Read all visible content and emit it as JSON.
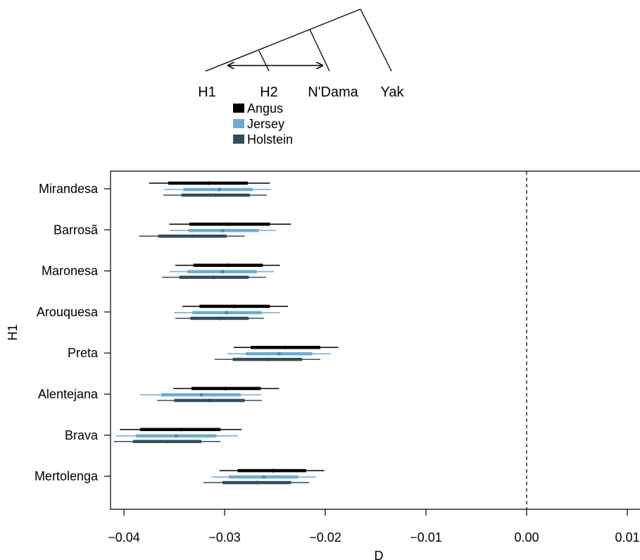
{
  "tree": {
    "tips": [
      "H1",
      "H2",
      "N'Dama",
      "Yak"
    ]
  },
  "legend": [
    {
      "label": "Angus",
      "color": "#000000"
    },
    {
      "label": "Jersey",
      "color": "#6aaed0"
    },
    {
      "label": "Holstein",
      "color": "#334d5f"
    }
  ],
  "chart_data": {
    "type": "interval",
    "xlabel": "D",
    "ylabel": "H1",
    "xlim": [
      -0.042,
      0.011
    ],
    "x_ticks": [
      -0.04,
      -0.03,
      -0.02,
      -0.01,
      0.0,
      0.01
    ],
    "x_tick_labels": [
      "−0.04",
      "−0.03",
      "−0.02",
      "−0.01",
      "0.00",
      "0.01"
    ],
    "reference_line": 0.0,
    "categories": [
      "Mirandesa",
      "Barrosã",
      "Maronesa",
      "Arouquesa",
      "Preta",
      "Alentejana",
      "Brava",
      "Mertolenga"
    ],
    "series": [
      {
        "name": "Angus",
        "values": [
          {
            "center": -0.0316,
            "inner": [
              -0.0356,
              -0.0277
            ],
            "outer": [
              -0.0375,
              -0.0255
            ]
          },
          {
            "center": -0.0296,
            "inner": [
              -0.0335,
              -0.0255
            ],
            "outer": [
              -0.0355,
              -0.0234
            ]
          },
          {
            "center": -0.0297,
            "inner": [
              -0.0331,
              -0.0262
            ],
            "outer": [
              -0.0349,
              -0.0245
            ]
          },
          {
            "center": -0.029,
            "inner": [
              -0.0325,
              -0.0255
            ],
            "outer": [
              -0.0342,
              -0.0237
            ]
          },
          {
            "center": -0.024,
            "inner": [
              -0.0274,
              -0.0205
            ],
            "outer": [
              -0.0291,
              -0.0187
            ]
          },
          {
            "center": -0.0299,
            "inner": [
              -0.0333,
              -0.0264
            ],
            "outer": [
              -0.0351,
              -0.0246
            ]
          },
          {
            "center": -0.0343,
            "inner": [
              -0.0384,
              -0.0304
            ],
            "outer": [
              -0.0404,
              -0.0283
            ]
          },
          {
            "center": -0.0252,
            "inner": [
              -0.0287,
              -0.0219
            ],
            "outer": [
              -0.0305,
              -0.0201
            ]
          }
        ]
      },
      {
        "name": "Jersey",
        "values": [
          {
            "center": -0.0305,
            "inner": [
              -0.0341,
              -0.0272
            ],
            "outer": [
              -0.036,
              -0.0254
            ]
          },
          {
            "center": -0.0302,
            "inner": [
              -0.0336,
              -0.0266
            ],
            "outer": [
              -0.0354,
              -0.0249
            ]
          },
          {
            "center": -0.0302,
            "inner": [
              -0.0337,
              -0.0268
            ],
            "outer": [
              -0.0355,
              -0.0251
            ]
          },
          {
            "center": -0.0298,
            "inner": [
              -0.0332,
              -0.0263
            ],
            "outer": [
              -0.035,
              -0.0245
            ]
          },
          {
            "center": -0.0246,
            "inner": [
              -0.0279,
              -0.0213
            ],
            "outer": [
              -0.0297,
              -0.0195
            ]
          },
          {
            "center": -0.0323,
            "inner": [
              -0.0363,
              -0.0284
            ],
            "outer": [
              -0.0384,
              -0.0264
            ]
          },
          {
            "center": -0.0348,
            "inner": [
              -0.0388,
              -0.0308
            ],
            "outer": [
              -0.0408,
              -0.0287
            ]
          },
          {
            "center": -0.0261,
            "inner": [
              -0.0296,
              -0.0227
            ],
            "outer": [
              -0.0313,
              -0.0209
            ]
          }
        ]
      },
      {
        "name": "Holstein",
        "values": [
          {
            "center": -0.0309,
            "inner": [
              -0.0343,
              -0.0275
            ],
            "outer": [
              -0.0361,
              -0.0258
            ]
          },
          {
            "center": -0.0332,
            "inner": [
              -0.0366,
              -0.0298
            ],
            "outer": [
              -0.0385,
              -0.028
            ]
          },
          {
            "center": -0.0311,
            "inner": [
              -0.0345,
              -0.0276
            ],
            "outer": [
              -0.0362,
              -0.0259
            ]
          },
          {
            "center": -0.0305,
            "inner": [
              -0.0334,
              -0.0276
            ],
            "outer": [
              -0.0349,
              -0.0261
            ]
          },
          {
            "center": -0.0257,
            "inner": [
              -0.0292,
              -0.0223
            ],
            "outer": [
              -0.031,
              -0.0205
            ]
          },
          {
            "center": -0.0315,
            "inner": [
              -0.035,
              -0.028
            ],
            "outer": [
              -0.0367,
              -0.0263
            ]
          },
          {
            "center": -0.0357,
            "inner": [
              -0.0391,
              -0.0323
            ],
            "outer": [
              -0.041,
              -0.0304
            ]
          },
          {
            "center": -0.0268,
            "inner": [
              -0.0302,
              -0.0234
            ],
            "outer": [
              -0.0321,
              -0.0216
            ]
          }
        ]
      }
    ]
  }
}
